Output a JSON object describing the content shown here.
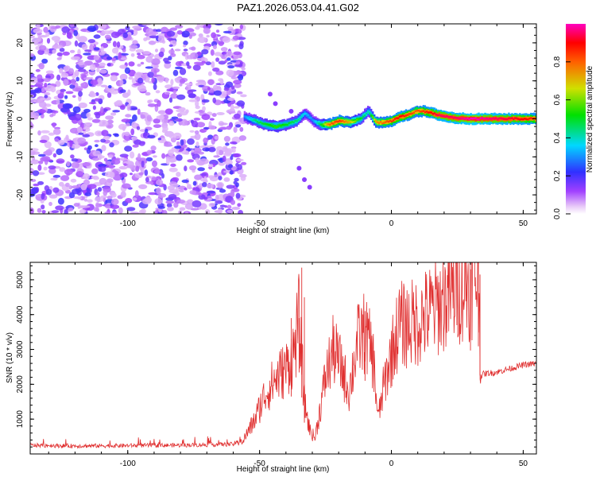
{
  "title": "PAZ1.2026.053.04.41.G02",
  "colors": {
    "snr_line": "#e03030",
    "axis": "#000000",
    "background": "#ffffff"
  },
  "chart_data": [
    {
      "type": "heatmap",
      "name": "spectrogram",
      "xlabel": "Height of straight line (km)",
      "ylabel": "Frequency (Hz)",
      "xlim": [
        -137,
        55
      ],
      "ylim": [
        -25,
        25
      ],
      "x_ticks": [
        -100,
        -50,
        0,
        50
      ],
      "x_tick_labels": [
        "-100",
        "-50",
        "0",
        "50"
      ],
      "y_ticks": [
        -20,
        -10,
        0,
        10,
        20
      ],
      "y_tick_labels": [
        "-20",
        "-10",
        "0",
        "10",
        "20"
      ],
      "colorbar": {
        "label": "Normalized spectral amplitude",
        "range": [
          0,
          1
        ],
        "ticks": [
          0.0,
          0.2,
          0.4,
          0.6,
          0.8
        ],
        "tick_labels": [
          "0.0",
          "0.2",
          "0.4",
          "0.6",
          "0.8"
        ],
        "colormap": "rainbow (magenta-blue-cyan-green-yellow-red)"
      },
      "noise_region_x": [
        -137,
        -56
      ],
      "signal_track": {
        "x": [
          -56,
          -52,
          -48,
          -44,
          -40,
          -36,
          -33,
          -30,
          -27,
          -24,
          -20,
          -16,
          -12,
          -9,
          -6,
          -3,
          0,
          3,
          6,
          9,
          12,
          15,
          18,
          21,
          24,
          30,
          40,
          50,
          55
        ],
        "freq": [
          0.5,
          -0.5,
          -1.5,
          -2,
          -1.5,
          -0.5,
          1.5,
          -0.5,
          -1.5,
          -1.5,
          -0.5,
          -1,
          0,
          2,
          -1,
          -1,
          -0.5,
          0.5,
          1,
          2,
          2,
          1.5,
          1,
          0.5,
          0.2,
          0,
          0,
          0,
          0
        ],
        "amplitude": [
          0.3,
          0.45,
          0.5,
          0.55,
          0.5,
          0.45,
          0.35,
          0.3,
          0.5,
          0.8,
          0.85,
          0.7,
          0.5,
          0.4,
          0.75,
          0.8,
          0.85,
          0.9,
          0.85,
          0.8,
          0.85,
          0.9,
          0.95,
          0.95,
          0.95,
          1.0,
          0.95,
          0.9,
          0.85
        ]
      }
    },
    {
      "type": "line",
      "name": "snr",
      "xlabel": "Height of straight line (km)",
      "ylabel": "SNR (10 * v/v)",
      "xlim": [
        -137,
        55
      ],
      "ylim": [
        0,
        5500
      ],
      "x_ticks": [
        -100,
        -50,
        0,
        50
      ],
      "x_tick_labels": [
        "-100",
        "-50",
        "0",
        "50"
      ],
      "y_ticks": [
        1000,
        2000,
        3000,
        4000,
        5000
      ],
      "y_tick_labels": [
        "1000",
        "2000",
        "3000",
        "4000",
        "5000"
      ],
      "series": [
        {
          "name": "SNR",
          "x": [
            -137,
            -120,
            -100,
            -80,
            -60,
            -56,
            -52,
            -48,
            -44,
            -40,
            -37,
            -35,
            -33,
            -31,
            -29,
            -27,
            -25,
            -22,
            -19,
            -16,
            -13,
            -10,
            -7,
            -5,
            -3,
            0,
            3,
            6,
            10,
            15,
            20,
            25,
            30,
            33,
            34,
            35,
            40,
            45,
            50,
            55
          ],
          "values": [
            250,
            230,
            240,
            250,
            280,
            420,
            950,
            1700,
            2150,
            2450,
            2900,
            3900,
            1500,
            700,
            450,
            1300,
            2200,
            3000,
            2500,
            1800,
            3200,
            3500,
            2800,
            1000,
            1900,
            2900,
            3700,
            3700,
            3800,
            4100,
            4400,
            4750,
            4950,
            5150,
            2250,
            2300,
            2350,
            2450,
            2550,
            2600
          ],
          "spikes": [
            {
              "x": -38,
              "value": 3900
            },
            {
              "x": -35,
              "value": 3900
            },
            {
              "x": -34,
              "value": 5350
            },
            {
              "x": -33,
              "value": 4500
            },
            {
              "x": -10,
              "value": 4100
            },
            {
              "x": 30,
              "value": 5300
            },
            {
              "x": 33,
              "value": 5500
            }
          ]
        }
      ]
    }
  ]
}
